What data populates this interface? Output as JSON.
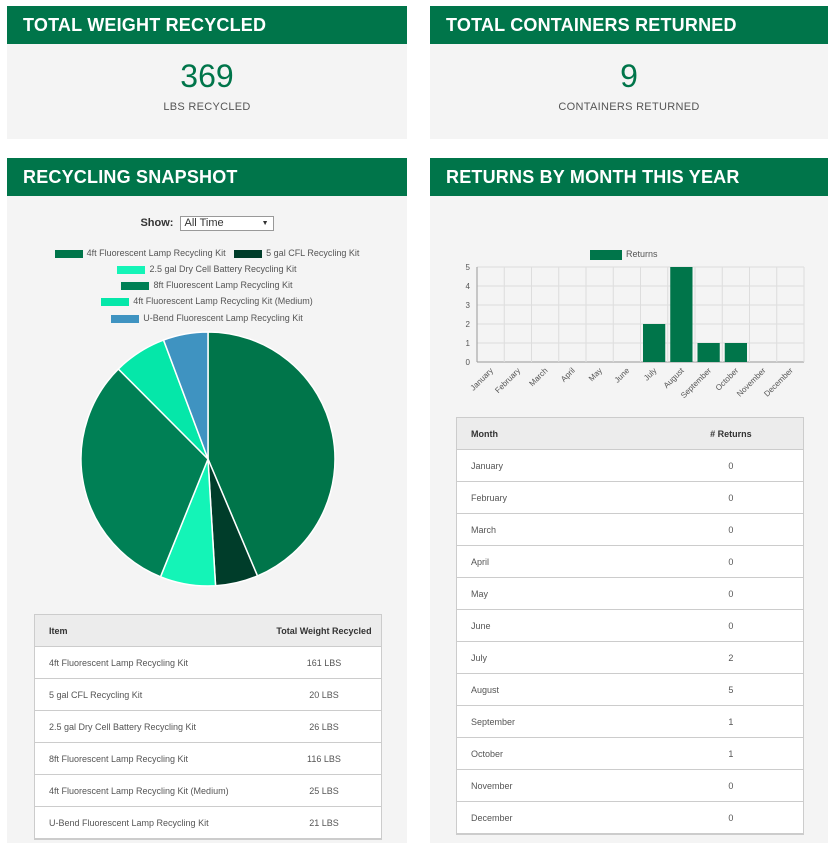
{
  "weight_panel": {
    "title": "TOTAL WEIGHT RECYCLED",
    "value": "369",
    "label": "LBS RECYCLED"
  },
  "containers_panel": {
    "title": "TOTAL CONTAINERS RETURNED",
    "value": "9",
    "label": "CONTAINERS RETURNED"
  },
  "snapshot_panel": {
    "title": "RECYCLING SNAPSHOT",
    "show_label": "Show:",
    "show_value": "All Time",
    "table_headers": [
      "Item",
      "Total Weight Recycled"
    ],
    "items": [
      {
        "name": "4ft Fluorescent Lamp Recycling Kit",
        "weight": "161 LBS",
        "lbs": 161,
        "color": "#00754a"
      },
      {
        "name": "5 gal CFL Recycling Kit",
        "weight": "20 LBS",
        "lbs": 20,
        "color": "#003d2a"
      },
      {
        "name": "2.5 gal Dry Cell Battery Recycling Kit",
        "weight": "26 LBS",
        "lbs": 26,
        "color": "#14f4b7"
      },
      {
        "name": "8ft Fluorescent Lamp Recycling Kit",
        "weight": "116 LBS",
        "lbs": 116,
        "color": "#008055"
      },
      {
        "name": "4ft Fluorescent Lamp Recycling Kit (Medium)",
        "weight": "25 LBS",
        "lbs": 25,
        "color": "#05e7a9"
      },
      {
        "name": "U-Bend Fluorescent Lamp Recycling Kit",
        "weight": "21 LBS",
        "lbs": 21,
        "color": "#3f93c1"
      }
    ]
  },
  "returns_panel": {
    "title": "RETURNS BY MONTH THIS YEAR",
    "table_headers": [
      "Month",
      "# Returns"
    ]
  },
  "chart_data": {
    "type": "bar",
    "series": [
      {
        "name": "Returns",
        "color": "#00754a"
      }
    ],
    "categories": [
      "January",
      "February",
      "March",
      "April",
      "May",
      "June",
      "July",
      "August",
      "September",
      "October",
      "November",
      "December"
    ],
    "values": [
      0,
      0,
      0,
      0,
      0,
      0,
      2,
      5,
      1,
      1,
      0,
      0
    ],
    "value_labels": [
      "0",
      "0",
      "0",
      "0",
      "0",
      "0",
      "2",
      "5",
      "1",
      "1",
      "0",
      "0"
    ],
    "ylim": [
      0,
      5
    ],
    "yticks": [
      "0",
      "1",
      "2",
      "3",
      "4",
      "5"
    ],
    "grid": true,
    "legend": "top"
  }
}
